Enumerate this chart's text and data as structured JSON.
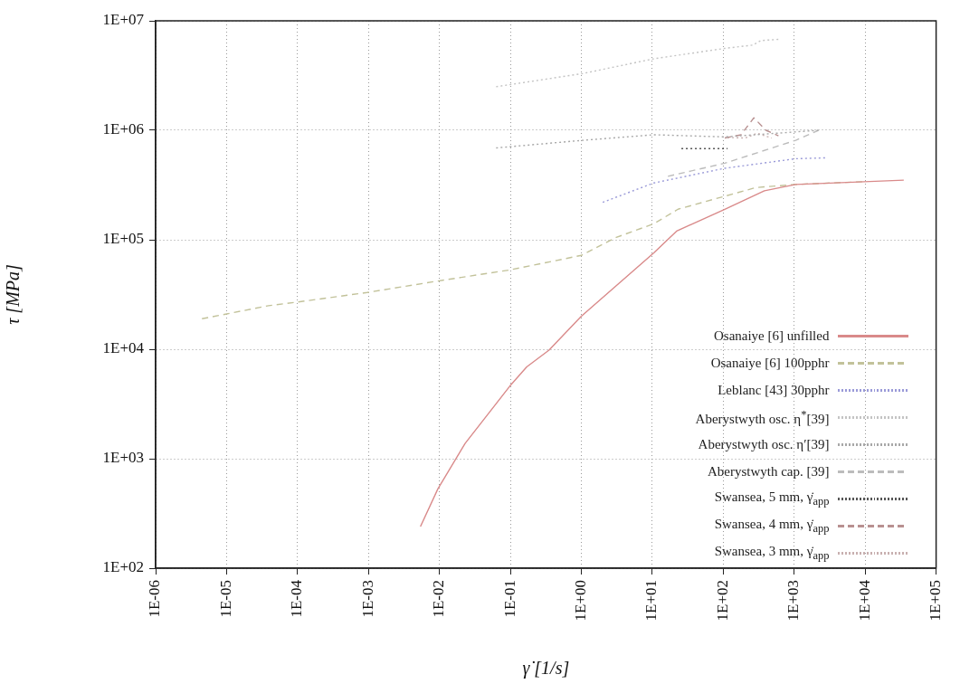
{
  "chart_data": {
    "type": "line",
    "xlabel": "γ̇ [1/s]",
    "ylabel": "τ [MPa]",
    "log": "xy",
    "grid": true,
    "legend": "bottom right",
    "marker": "none",
    "xlim": [
      1e-06,
      100000.0
    ],
    "ylim": [
      100,
      10000000.0
    ],
    "xticks": [
      {
        "value": 1e-06,
        "label": "1E-06"
      },
      {
        "value": 1e-05,
        "label": "1E-05"
      },
      {
        "value": 0.0001,
        "label": "1E-04"
      },
      {
        "value": 0.001,
        "label": "1E-03"
      },
      {
        "value": 0.01,
        "label": "1E-02"
      },
      {
        "value": 0.1,
        "label": "1E-01"
      },
      {
        "value": 1,
        "label": "1E+00"
      },
      {
        "value": 10,
        "label": "1E+01"
      },
      {
        "value": 100,
        "label": "1E+02"
      },
      {
        "value": 1000,
        "label": "1E+03"
      },
      {
        "value": 10000,
        "label": "1E+04"
      },
      {
        "value": 100000,
        "label": "1E+05"
      }
    ],
    "yticks": [
      {
        "value": 100,
        "label": "1E+02"
      },
      {
        "value": 1000,
        "label": "1E+03"
      },
      {
        "value": 10000,
        "label": "1E+04"
      },
      {
        "value": 100000,
        "label": "1E+05"
      },
      {
        "value": 1000000,
        "label": "1E+06"
      },
      {
        "value": 10000000,
        "label": "1E+07"
      }
    ],
    "series": [
      {
        "name": "Osanaiye [6] unfilled",
        "color": "#d98a8a",
        "line_style": "solid",
        "x": [
          0.0054,
          0.0095,
          0.023,
          0.098,
          0.17,
          0.35,
          1.0,
          10.5,
          22,
          105,
          380,
          1050,
          35000
        ],
        "values": [
          240,
          530,
          1380,
          4600,
          6900,
          9800,
          20000,
          76000,
          120000,
          190000,
          280000,
          320000,
          350000
        ]
      },
      {
        "name": "Osanaiye [6] 100pphr",
        "color": "#c2c29a",
        "line_style": "dashed",
        "x": [
          4.5e-06,
          1e-05,
          3.9e-05,
          0.0001,
          0.00096,
          0.0095,
          0.098,
          1.0,
          3.1,
          10.5,
          23,
          105,
          290,
          1050,
          10000
        ],
        "values": [
          19000,
          21000,
          25000,
          27000,
          33000,
          42000,
          53000,
          72000,
          105000,
          140000,
          190000,
          250000,
          300000,
          320000,
          340000
        ]
      },
      {
        "name": "Leblanc [43] 30pphr",
        "color": "#9a9ad8",
        "line_style": "dotted",
        "x": [
          2.0,
          10.5,
          105,
          1050,
          2750
        ],
        "values": [
          220000,
          330000,
          450000,
          550000,
          560000
        ]
      },
      {
        "name": "Aberystwyth osc. η$^{*}$[39]",
        "color": "#c4c4c4",
        "line_style": "dotted",
        "x": [
          0.063,
          1.05,
          10.5,
          105,
          260,
          340,
          650
        ],
        "values": [
          2500000,
          3300000,
          4500000,
          5600000,
          6000000,
          6600000,
          6800000
        ]
      },
      {
        "name": "Aberystwyth osc. η′[39]",
        "color": "#a8a8a8",
        "line_style": "dotted",
        "x": [
          0.063,
          1.05,
          10.5,
          105,
          2200
        ],
        "values": [
          690000,
          810000,
          910000,
          870000,
          1000000
        ]
      },
      {
        "name": "Aberystwyth cap. [39]",
        "color": "#bcbcbc",
        "line_style": "dashed",
        "x": [
          16.6,
          105,
          1050,
          2200
        ],
        "values": [
          380000,
          500000,
          810000,
          1000000
        ]
      },
      {
        "name": "Swansea, 5 mm, γ̇$_{app}$",
        "color": "#555555",
        "line_style": "dotted",
        "x": [
          25.7,
          115
        ],
        "values": [
          680000,
          680000
        ]
      },
      {
        "name": "Swansea, 4 mm, γ̇$_{app}$",
        "color": "#b89090",
        "line_style": "dashed",
        "x": [
          105,
          178,
          270,
          400,
          600
        ],
        "values": [
          850000,
          910000,
          1300000,
          1000000,
          890000
        ]
      },
      {
        "name": "Swansea, 3 mm, γ̇$_{app}$",
        "color": "#c8b0b0",
        "line_style": "dotted",
        "x": [
          115,
          205,
          300,
          480
        ],
        "values": [
          860000,
          850000,
          940000,
          850000
        ]
      }
    ]
  }
}
